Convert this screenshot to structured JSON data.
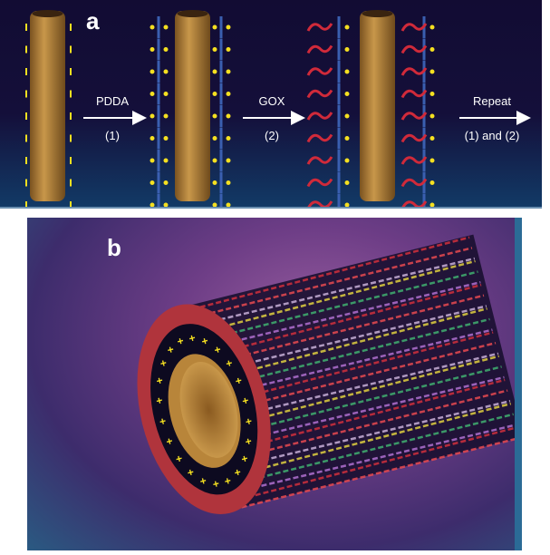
{
  "panel_a": {
    "label": "a",
    "steps": [
      {
        "reagent": "PDDA",
        "step": "(1)"
      },
      {
        "reagent": "GOX",
        "step": "(2)"
      },
      {
        "reagent": "Repeat",
        "step": "(1) and (2)"
      }
    ]
  },
  "panel_b": {
    "label": "b"
  },
  "colors": {
    "tube": "#b8853a",
    "background_a": "#140f3a",
    "positive_charge": "#f5e020",
    "polymer": "#3a5fb0",
    "enzyme": "#d02a3a"
  }
}
